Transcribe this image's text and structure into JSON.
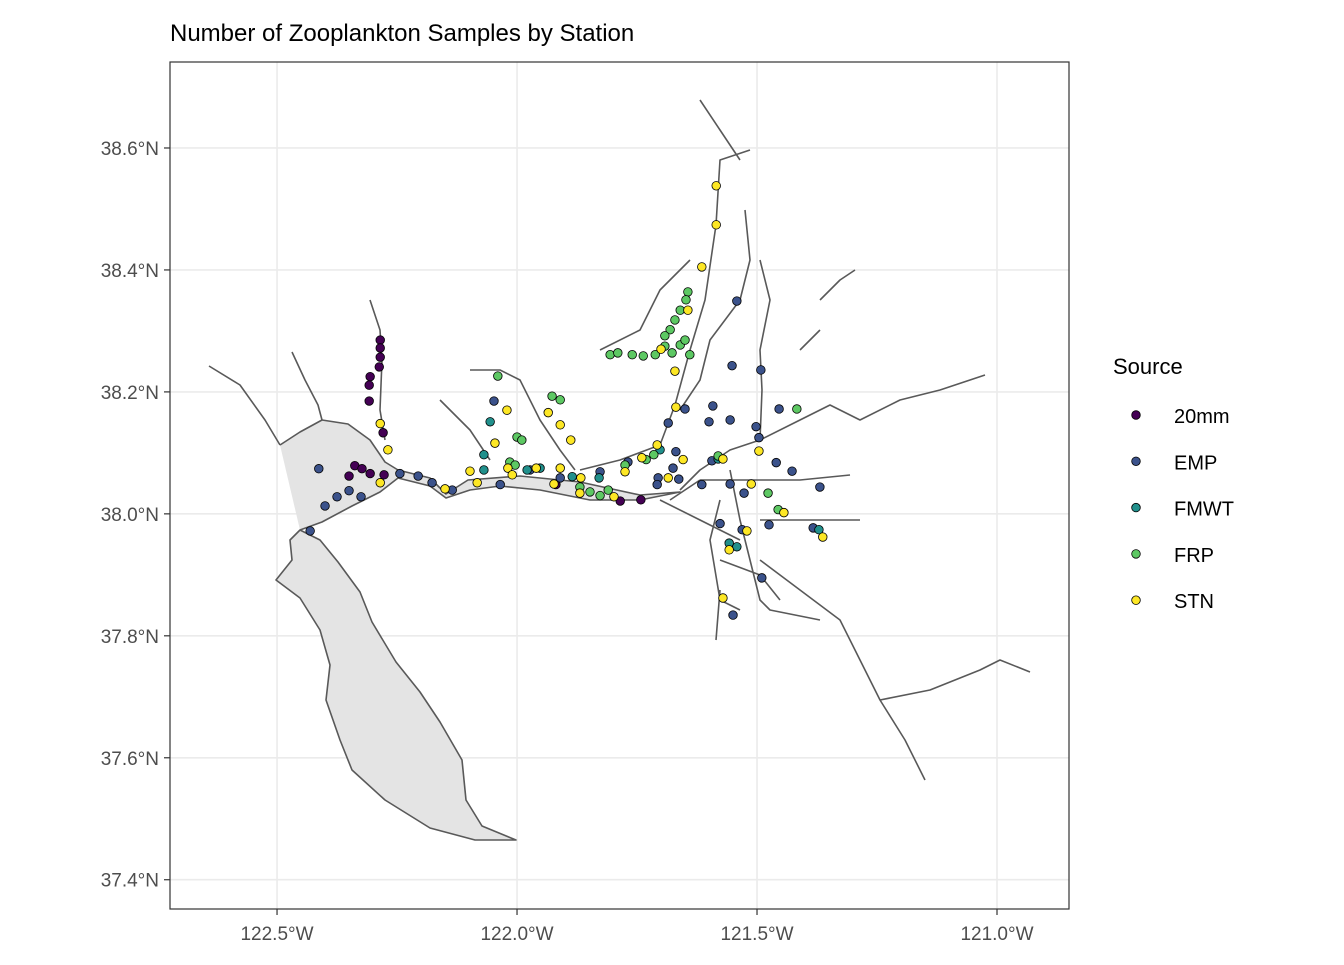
{
  "chart_data": {
    "type": "scatter",
    "title": "Number of Zooplankton Samples by Station",
    "xlabel": "",
    "ylabel": "",
    "xlim": [
      -122.723,
      -120.85
    ],
    "ylim": [
      37.352,
      38.741
    ],
    "grid": true,
    "x_ticks": [
      {
        "value": -122.5,
        "label": "122.5°W"
      },
      {
        "value": -122.0,
        "label": "122.0°W"
      },
      {
        "value": -121.5,
        "label": "121.5°W"
      },
      {
        "value": -121.0,
        "label": "121.0°W"
      }
    ],
    "y_ticks": [
      {
        "value": 38.6,
        "label": "38.6°N"
      },
      {
        "value": 38.4,
        "label": "38.4°N"
      },
      {
        "value": 38.2,
        "label": "38.2°N"
      },
      {
        "value": 38.0,
        "label": "38.0°N"
      },
      {
        "value": 37.8,
        "label": "37.8°N"
      },
      {
        "value": 37.6,
        "label": "37.6°N"
      },
      {
        "value": 37.4,
        "label": "37.4°N"
      }
    ],
    "legend": {
      "title": "Source",
      "position": "right",
      "entries": [
        {
          "name": "20mm",
          "color": "#440154"
        },
        {
          "name": "EMP",
          "color": "#3B528B"
        },
        {
          "name": "FMWT",
          "color": "#21908C"
        },
        {
          "name": "FRP",
          "color": "#5DC863"
        },
        {
          "name": "STN",
          "color": "#FDE725"
        }
      ]
    },
    "series": [
      {
        "name": "20mm",
        "points": [
          [
            -122.285,
            38.285
          ],
          [
            -122.285,
            38.272
          ],
          [
            -122.285,
            38.257
          ],
          [
            -122.287,
            38.241
          ],
          [
            -122.306,
            38.225
          ],
          [
            -122.308,
            38.211
          ],
          [
            -122.308,
            38.185
          ],
          [
            -122.279,
            38.133
          ],
          [
            -122.338,
            38.079
          ],
          [
            -122.323,
            38.074
          ],
          [
            -122.35,
            38.062
          ],
          [
            -122.306,
            38.066
          ],
          [
            -122.277,
            38.064
          ],
          [
            -121.785,
            38.021
          ],
          [
            -121.742,
            38.023
          ],
          [
            -121.919,
            38.048
          ]
        ]
      },
      {
        "name": "EMP",
        "points": [
          [
            -122.413,
            38.074
          ],
          [
            -122.35,
            38.038
          ],
          [
            -122.375,
            38.028
          ],
          [
            -122.325,
            38.028
          ],
          [
            -122.4,
            38.013
          ],
          [
            -122.431,
            37.972
          ],
          [
            -122.244,
            38.066
          ],
          [
            -122.206,
            38.062
          ],
          [
            -122.177,
            38.051
          ],
          [
            -122.135,
            38.039
          ],
          [
            -122.048,
            38.185
          ],
          [
            -122.035,
            38.048
          ],
          [
            -121.973,
            38.072
          ],
          [
            -121.91,
            38.059
          ],
          [
            -121.827,
            38.069
          ],
          [
            -121.769,
            38.085
          ],
          [
            -121.706,
            38.059
          ],
          [
            -121.685,
            38.149
          ],
          [
            -121.65,
            38.172
          ],
          [
            -121.592,
            38.177
          ],
          [
            -121.6,
            38.151
          ],
          [
            -121.556,
            38.154
          ],
          [
            -121.542,
            38.349
          ],
          [
            -121.552,
            38.243
          ],
          [
            -121.492,
            38.236
          ],
          [
            -121.502,
            38.143
          ],
          [
            -121.496,
            38.125
          ],
          [
            -121.46,
            38.084
          ],
          [
            -121.427,
            38.07
          ],
          [
            -121.454,
            38.172
          ],
          [
            -121.669,
            38.102
          ],
          [
            -121.675,
            38.075
          ],
          [
            -121.663,
            38.057
          ],
          [
            -121.708,
            38.048
          ],
          [
            -121.615,
            38.048
          ],
          [
            -121.577,
            37.984
          ],
          [
            -121.531,
            37.974
          ],
          [
            -121.475,
            37.982
          ],
          [
            -121.49,
            37.895
          ],
          [
            -121.55,
            37.834
          ],
          [
            -121.556,
            38.049
          ],
          [
            -121.527,
            38.034
          ],
          [
            -121.383,
            37.977
          ],
          [
            -121.369,
            38.044
          ],
          [
            -121.594,
            38.087
          ]
        ]
      },
      {
        "name": "FMWT",
        "points": [
          [
            -122.056,
            38.151
          ],
          [
            -122.069,
            38.097
          ],
          [
            -122.069,
            38.072
          ],
          [
            -121.979,
            38.072
          ],
          [
            -121.952,
            38.075
          ],
          [
            -121.885,
            38.061
          ],
          [
            -121.829,
            38.059
          ],
          [
            -121.542,
            37.946
          ],
          [
            -121.558,
            37.952
          ],
          [
            -121.371,
            37.974
          ],
          [
            -121.581,
            38.09
          ],
          [
            -121.702,
            38.105
          ]
        ]
      },
      {
        "name": "FRP",
        "points": [
          [
            -122.04,
            38.226
          ],
          [
            -122.0,
            38.126
          ],
          [
            -121.99,
            38.121
          ],
          [
            -121.927,
            38.193
          ],
          [
            -121.91,
            38.187
          ],
          [
            -122.015,
            38.085
          ],
          [
            -122.004,
            38.08
          ],
          [
            -121.869,
            38.044
          ],
          [
            -121.848,
            38.036
          ],
          [
            -121.827,
            38.03
          ],
          [
            -121.81,
            38.039
          ],
          [
            -121.806,
            38.261
          ],
          [
            -121.79,
            38.264
          ],
          [
            -121.76,
            38.261
          ],
          [
            -121.737,
            38.259
          ],
          [
            -121.712,
            38.261
          ],
          [
            -121.692,
            38.275
          ],
          [
            -121.681,
            38.302
          ],
          [
            -121.671,
            38.318
          ],
          [
            -121.66,
            38.334
          ],
          [
            -121.644,
            38.364
          ],
          [
            -121.648,
            38.351
          ],
          [
            -121.66,
            38.277
          ],
          [
            -121.677,
            38.264
          ],
          [
            -121.65,
            38.285
          ],
          [
            -121.64,
            38.261
          ],
          [
            -121.692,
            38.292
          ],
          [
            -121.731,
            38.089
          ],
          [
            -121.715,
            38.097
          ],
          [
            -121.581,
            38.095
          ],
          [
            -121.477,
            38.034
          ],
          [
            -121.456,
            38.007
          ],
          [
            -121.417,
            38.172
          ],
          [
            -121.775,
            38.08
          ]
        ]
      },
      {
        "name": "STN",
        "points": [
          [
            -121.585,
            38.538
          ],
          [
            -121.585,
            38.474
          ],
          [
            -121.615,
            38.405
          ],
          [
            -121.644,
            38.334
          ],
          [
            -121.7,
            38.27
          ],
          [
            -121.671,
            38.234
          ],
          [
            -121.669,
            38.175
          ],
          [
            -121.708,
            38.113
          ],
          [
            -121.74,
            38.092
          ],
          [
            -121.775,
            38.069
          ],
          [
            -121.867,
            38.059
          ],
          [
            -121.869,
            38.034
          ],
          [
            -121.798,
            38.028
          ],
          [
            -121.654,
            38.089
          ],
          [
            -121.685,
            38.059
          ],
          [
            -121.571,
            38.09
          ],
          [
            -121.512,
            38.049
          ],
          [
            -121.496,
            38.103
          ],
          [
            -121.444,
            38.002
          ],
          [
            -121.363,
            37.962
          ],
          [
            -121.521,
            37.972
          ],
          [
            -121.558,
            37.941
          ],
          [
            -121.571,
            37.862
          ],
          [
            -122.285,
            38.148
          ],
          [
            -122.269,
            38.105
          ],
          [
            -122.285,
            38.051
          ],
          [
            -122.15,
            38.041
          ],
          [
            -122.098,
            38.07
          ],
          [
            -122.083,
            38.051
          ],
          [
            -122.021,
            38.17
          ],
          [
            -122.046,
            38.116
          ],
          [
            -122.019,
            38.075
          ],
          [
            -122.01,
            38.064
          ],
          [
            -121.96,
            38.075
          ],
          [
            -121.923,
            38.049
          ],
          [
            -121.935,
            38.166
          ],
          [
            -121.91,
            38.146
          ],
          [
            -121.888,
            38.121
          ],
          [
            -121.91,
            38.075
          ]
        ]
      }
    ]
  }
}
